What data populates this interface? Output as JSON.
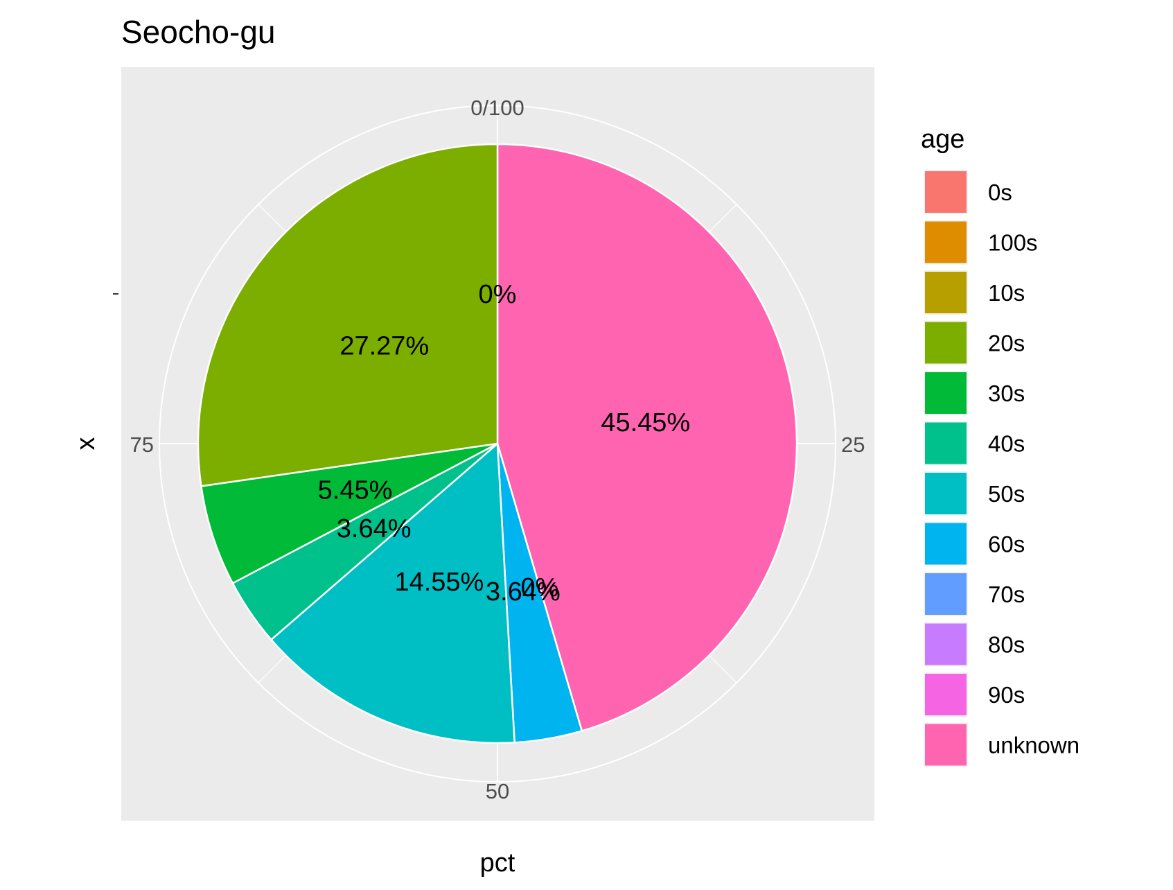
{
  "chart_data": {
    "type": "pie",
    "title": "Seocho-gu",
    "xlabel": "pct",
    "ylabel": "x",
    "y_tick_labels": [
      "-"
    ],
    "angle_tick_labels": [
      "0/100",
      "25",
      "50",
      "75"
    ],
    "angle_ticks": [
      0,
      25,
      50,
      75
    ],
    "legend": {
      "title": "age",
      "position": "right"
    },
    "panel_background": "#EBEBEB",
    "grid": true,
    "slices": [
      {
        "category": "0s",
        "value": 0,
        "label": "0%",
        "color": "#F8766D"
      },
      {
        "category": "100s",
        "value": 0,
        "label": "0%",
        "color": "#DE8C00"
      },
      {
        "category": "10s",
        "value": 0,
        "label": "0%",
        "color": "#B79F00"
      },
      {
        "category": "20s",
        "value": 27.27,
        "label": "27.27%",
        "color": "#7CAE00"
      },
      {
        "category": "30s",
        "value": 5.45,
        "label": "5.45%",
        "color": "#00BA38"
      },
      {
        "category": "40s",
        "value": 3.64,
        "label": "3.64%",
        "color": "#00C08B"
      },
      {
        "category": "50s",
        "value": 14.55,
        "label": "14.55%",
        "color": "#00BFC4"
      },
      {
        "category": "60s",
        "value": 3.64,
        "label": "3.64%",
        "color": "#00B4F0"
      },
      {
        "category": "70s",
        "value": 0,
        "label": "0%",
        "color": "#619CFF"
      },
      {
        "category": "80s",
        "value": 0,
        "label": "0%",
        "color": "#C77CFF"
      },
      {
        "category": "90s",
        "value": 0,
        "label": "0%",
        "color": "#F564E3"
      },
      {
        "category": "unknown",
        "value": 45.45,
        "label": "45.45%",
        "color": "#FF64B0"
      }
    ],
    "visible_value_labels": [
      "0%",
      "27.27%",
      "5.45%",
      "3.64%",
      "14.55%",
      "3.64%",
      "0%",
      "45.45%"
    ]
  }
}
